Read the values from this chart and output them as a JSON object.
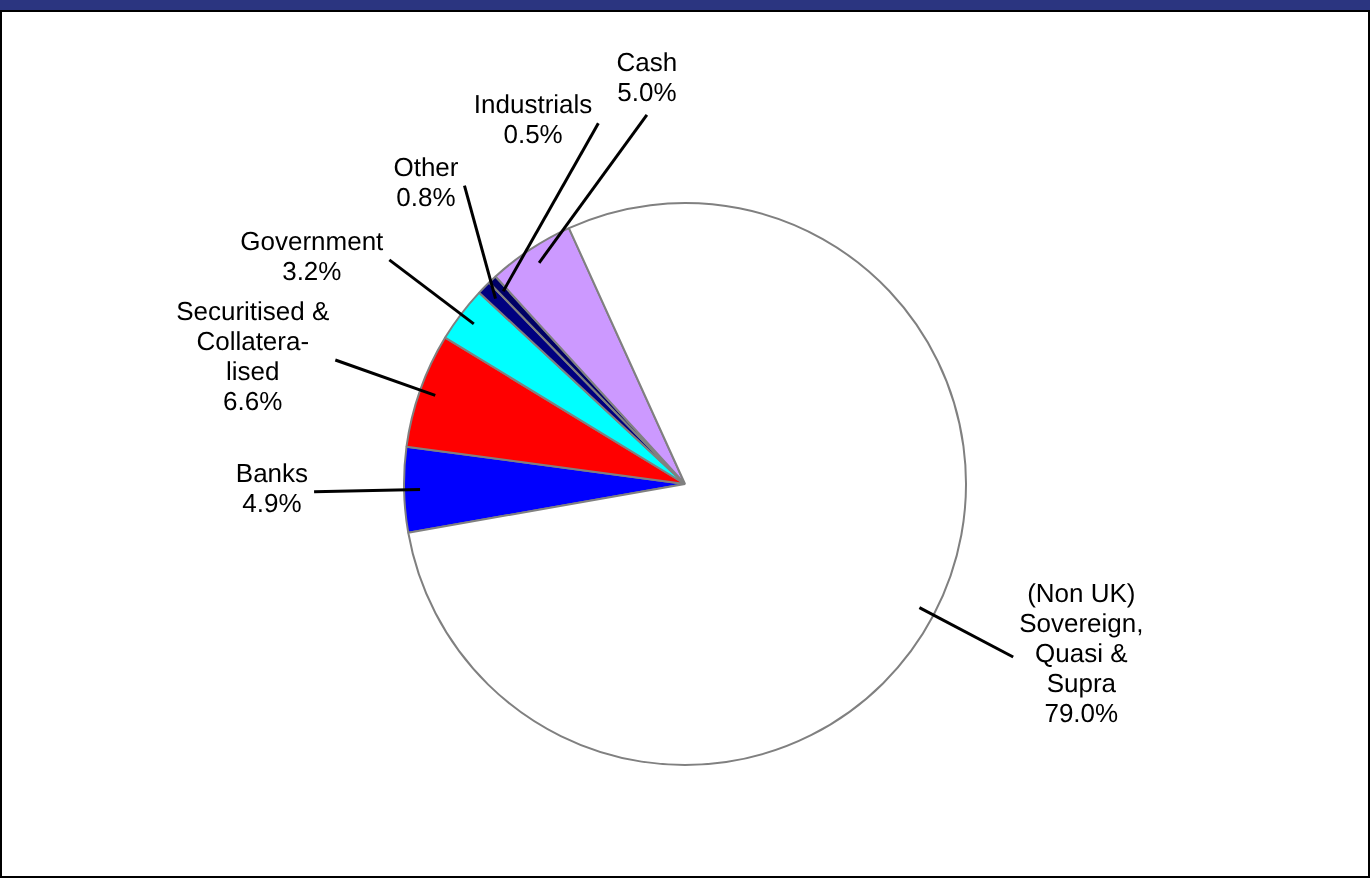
{
  "chart_data": {
    "type": "pie",
    "categories": [
      "Banks",
      "Securitised & Collatera-lised",
      "Government",
      "Other",
      "Industrials",
      "Cash",
      "(Non UK) Sovereign, Quasi & Supra"
    ],
    "values": [
      4.9,
      6.6,
      3.2,
      0.8,
      0.5,
      5.0,
      79.0
    ],
    "colors": [
      "#0000ff",
      "#ff0000",
      "#00ffff",
      "#000080",
      "#000066",
      "#cc99ff",
      "#ffffff"
    ],
    "value_labels": [
      "4.9%",
      "6.6%",
      "3.2%",
      "0.8%",
      "0.5%",
      "5.0%",
      "79.0%"
    ],
    "legend": false
  }
}
